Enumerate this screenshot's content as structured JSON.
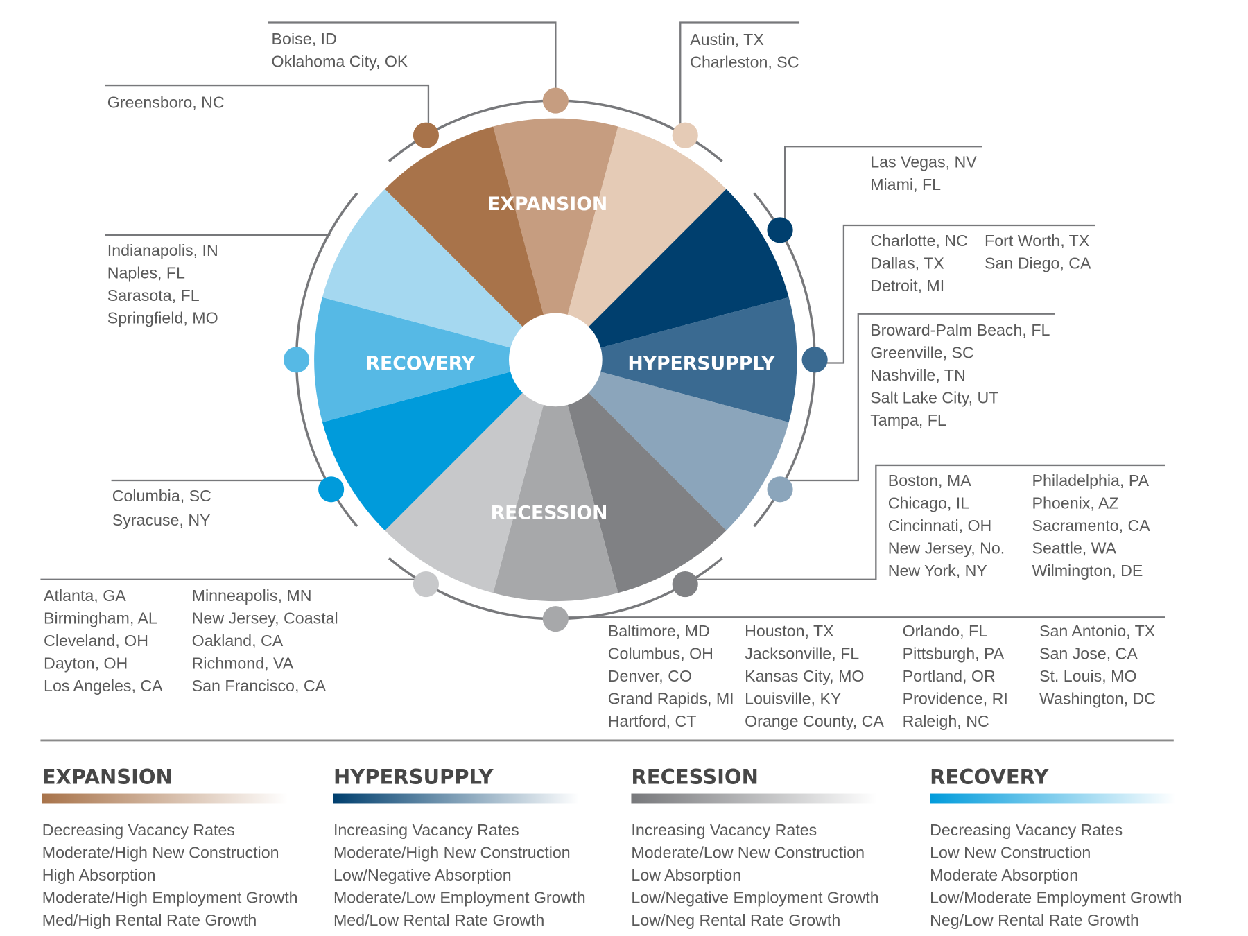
{
  "wheel": {
    "phases": [
      {
        "label": "EXPANSION",
        "colors": [
          "#c69d80",
          "#e5cbb6",
          "#a8734a"
        ]
      },
      {
        "label": "HYPERSUPPLY",
        "colors": [
          "#003f6e",
          "#3a6a91",
          "#8ba5bb"
        ]
      },
      {
        "label": "RECESSION",
        "colors": [
          "#808184",
          "#a7a8aa",
          "#c7c8ca"
        ]
      },
      {
        "label": "RECOVERY",
        "colors": [
          "#009bdb",
          "#56b9e5",
          "#a5d8f0"
        ]
      }
    ],
    "wedge_colors": [
      "#c69d80",
      "#e5cbb6",
      "#003f6e",
      "#3a6a91",
      "#8ba5bb",
      "#808184",
      "#a7a8aa",
      "#c7c8ca",
      "#009bdb",
      "#56b9e5",
      "#a5d8f0",
      "#a8734a"
    ],
    "ring_color": "#77787b"
  },
  "callouts": [
    {
      "position": 0,
      "columns": [
        [
          "Boise, ID",
          "Oklahoma City, OK"
        ]
      ]
    },
    {
      "position": 1,
      "columns": [
        [
          "Austin, TX",
          "Charleston, SC"
        ]
      ]
    },
    {
      "position": 2,
      "columns": [
        [
          "Las Vegas, NV",
          "Miami, FL"
        ]
      ]
    },
    {
      "position": 3,
      "columns": [
        [
          "Charlotte, NC",
          "Dallas, TX",
          "Detroit, MI"
        ],
        [
          "Fort Worth, TX",
          "San Diego, CA"
        ]
      ]
    },
    {
      "position": 4,
      "columns": [
        [
          "Broward-Palm Beach, FL",
          "Greenville, SC",
          "Nashville, TN",
          "Salt Lake City, UT",
          "Tampa, FL"
        ]
      ]
    },
    {
      "position": 5,
      "columns": [
        [
          "Boston, MA",
          "Chicago, IL",
          "Cincinnati, OH",
          "New Jersey, No.",
          "New York, NY"
        ],
        [
          "Philadelphia, PA",
          "Phoenix, AZ",
          "Sacramento, CA",
          "Seattle, WA",
          "Wilmington, DE"
        ]
      ]
    },
    {
      "position": 6,
      "columns": [
        [
          "Baltimore, MD",
          "Columbus, OH",
          "Denver, CO",
          "Grand Rapids, MI",
          "Hartford, CT"
        ],
        [
          "Houston, TX",
          "Jacksonville, FL",
          "Kansas City, MO",
          "Louisville, KY",
          "Orange County, CA"
        ],
        [
          "Orlando, FL",
          "Pittsburgh, PA",
          "Portland, OR",
          "Providence, RI",
          "Raleigh, NC"
        ],
        [
          "San Antonio, TX",
          "San Jose, CA",
          "St. Louis, MO",
          "Washington, DC"
        ]
      ]
    },
    {
      "position": 7,
      "columns": [
        [
          "Atlanta, GA",
          "Birmingham, AL",
          "Cleveland, OH",
          "Dayton, OH",
          "Los Angeles, CA"
        ],
        [
          "Minneapolis, MN",
          "New Jersey, Coastal",
          "Oakland, CA",
          "Richmond, VA",
          "San Francisco, CA"
        ]
      ]
    },
    {
      "position": 8,
      "columns": [
        [
          "Columbia, SC",
          "Syracuse, NY"
        ]
      ]
    },
    {
      "position": 9,
      "columns": [
        [
          "Indianapolis, IN",
          "Naples, FL",
          "Sarasota, FL",
          "Springfield, MO"
        ]
      ]
    },
    {
      "position": 11,
      "columns": [
        [
          "Greensboro, NC"
        ]
      ]
    }
  ],
  "legend": [
    {
      "title": "EXPANSION",
      "gradient": [
        "#a8734a",
        "#ffffff"
      ],
      "items": [
        "Decreasing Vacancy Rates",
        "Moderate/High New Construction",
        "High Absorption",
        "Moderate/High Employment Growth",
        "Med/High Rental Rate Growth"
      ]
    },
    {
      "title": "HYPERSUPPLY",
      "gradient": [
        "#003f6e",
        "#ffffff"
      ],
      "items": [
        "Increasing Vacancy Rates",
        "Moderate/High New Construction",
        "Low/Negative Absorption",
        "Moderate/Low Employment Growth",
        "Med/Low Rental Rate Growth"
      ]
    },
    {
      "title": "RECESSION",
      "gradient": [
        "#77787b",
        "#ffffff"
      ],
      "items": [
        "Increasing Vacancy Rates",
        "Moderate/Low New Construction",
        "Low Absorption",
        "Low/Negative Employment Growth",
        "Low/Neg Rental Rate Growth"
      ]
    },
    {
      "title": "RECOVERY",
      "gradient": [
        "#009bdb",
        "#ffffff"
      ],
      "items": [
        "Decreasing Vacancy Rates",
        "Low New Construction",
        "Moderate Absorption",
        "Low/Moderate Employment Growth",
        "Neg/Low Rental Rate Growth"
      ]
    }
  ]
}
